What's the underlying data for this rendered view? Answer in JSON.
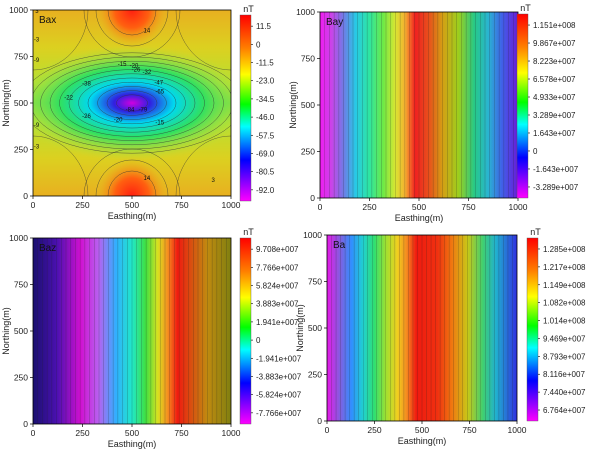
{
  "chart_data": [
    {
      "type": "heatmap",
      "panel_label": "Bax",
      "xlabel": "Easthing(m)",
      "ylabel": "Northing(m)",
      "xticks": [
        "0",
        "250",
        "500",
        "750",
        "1000"
      ],
      "yticks": [
        "1000",
        "750",
        "500",
        "250",
        "0"
      ],
      "xlim": [
        0,
        1000
      ],
      "ylim": [
        0,
        1000
      ],
      "colorbar_unit": "nT",
      "colorbar_ticks": [
        "11.5",
        "0",
        "-11.5",
        "-23.0",
        "-34.5",
        "-46.0",
        "-57.5",
        "-69.0",
        "-80.5",
        "-92.0"
      ],
      "contour_labels": [
        {
          "text": "3",
          "x": 20,
          "y": 985
        },
        {
          "text": "-3",
          "x": 18,
          "y": 830
        },
        {
          "text": "-9",
          "x": 18,
          "y": 720
        },
        {
          "text": "14",
          "x": 575,
          "y": 880
        },
        {
          "text": "-15",
          "x": 450,
          "y": 700
        },
        {
          "text": "-20",
          "x": 510,
          "y": 690
        },
        {
          "text": "-26",
          "x": 520,
          "y": 670
        },
        {
          "text": "-32",
          "x": 575,
          "y": 655
        },
        {
          "text": "-38",
          "x": 270,
          "y": 595
        },
        {
          "text": "-22",
          "x": 180,
          "y": 520
        },
        {
          "text": "-47",
          "x": 635,
          "y": 600
        },
        {
          "text": "-65",
          "x": 640,
          "y": 550
        },
        {
          "text": "-84",
          "x": 490,
          "y": 455
        },
        {
          "text": "-79",
          "x": 555,
          "y": 455
        },
        {
          "text": "-26",
          "x": 270,
          "y": 420
        },
        {
          "text": "-20",
          "x": 430,
          "y": 400
        },
        {
          "text": "-15",
          "x": 640,
          "y": 385
        },
        {
          "text": "-9",
          "x": 18,
          "y": 370
        },
        {
          "text": "-3",
          "x": 18,
          "y": 255
        },
        {
          "text": "14",
          "x": 575,
          "y": 85
        },
        {
          "text": "3",
          "x": 910,
          "y": 75
        }
      ]
    },
    {
      "type": "heatmap",
      "panel_label": "Bay",
      "xlabel": "Easthing(m)",
      "ylabel": "Northing(m)",
      "xticks": [
        "0",
        "250",
        "500",
        "750",
        "1000"
      ],
      "yticks": [
        "1000",
        "750",
        "500",
        "250",
        "0"
      ],
      "xlim": [
        0,
        1000
      ],
      "ylim": [
        0,
        1000
      ],
      "colorbar_unit": "nT",
      "colorbar_ticks": [
        "1.151e+008",
        "9.867e+007",
        "8.223e+007",
        "6.578e+007",
        "4.933e+007",
        "3.289e+007",
        "1.643e+007",
        "0",
        "-1.643e+007",
        "-3.289e+007"
      ]
    },
    {
      "type": "heatmap",
      "panel_label": "Baz",
      "xlabel": "Easthing(m)",
      "ylabel": "Northing(m)",
      "xticks": [
        "0",
        "250",
        "500",
        "750",
        "1000"
      ],
      "yticks": [
        "1000",
        "750",
        "500",
        "250",
        "0"
      ],
      "xlim": [
        0,
        1000
      ],
      "ylim": [
        0,
        1000
      ],
      "colorbar_unit": "nT",
      "colorbar_ticks": [
        "9.708e+007",
        "7.766e+007",
        "5.824e+007",
        "3.883e+007",
        "1.941e+007",
        "0",
        "-1.941e+007",
        "-3.883e+007",
        "-5.824e+007",
        "-7.766e+007"
      ]
    },
    {
      "type": "heatmap",
      "panel_label": "Ba",
      "xlabel": "Easthing(m)",
      "ylabel": "Northing(m)",
      "xticks": [
        "0",
        "250",
        "500",
        "750",
        "1000"
      ],
      "yticks": [
        "1000",
        "750",
        "500",
        "250",
        "0"
      ],
      "xlim": [
        0,
        1000
      ],
      "ylim": [
        0,
        1000
      ],
      "colorbar_unit": "nT",
      "colorbar_ticks": [
        "1.285e+008",
        "1.217e+008",
        "1.149e+008",
        "1.082e+008",
        "1.014e+008",
        "9.469e+007",
        "8.793e+007",
        "8.116e+007",
        "7.440e+007",
        "6.764e+007"
      ]
    }
  ]
}
